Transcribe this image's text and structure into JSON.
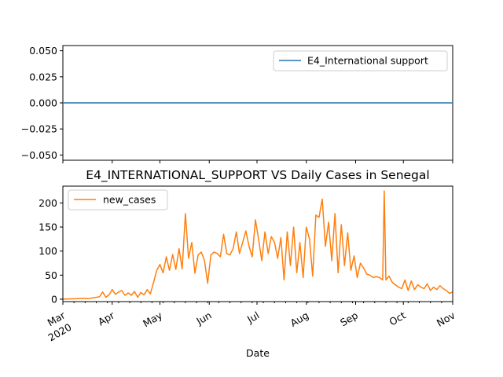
{
  "chart_data": [
    {
      "type": "line",
      "title": "",
      "xlabel": "",
      "ylabel": "",
      "x_start": "2020-03-01",
      "x_end": "2020-11-01",
      "ylim": [
        -0.055,
        0.055
      ],
      "yticks": [
        "0.050",
        "0.025",
        "0.000",
        "−0.025",
        "−0.050"
      ],
      "legend_position": "top-right",
      "series": [
        {
          "name": "E4_International support",
          "color": "#1f77b4",
          "x": [
            "2020-03-01",
            "2020-11-01"
          ],
          "values": [
            0,
            0
          ]
        }
      ]
    },
    {
      "type": "line",
      "title": "E4_INTERNATIONAL_SUPPORT VS Daily Cases in Senegal",
      "xlabel": "Date",
      "ylabel": "",
      "x_start": "2020-03-01",
      "x_end": "2020-11-01",
      "ylim": [
        -5,
        235
      ],
      "yticks": [
        "0",
        "50",
        "100",
        "150",
        "200"
      ],
      "xticks": [
        {
          "date": "2020-03-01",
          "label": "Mar",
          "sub": "2020"
        },
        {
          "date": "2020-04-01",
          "label": "Apr",
          "sub": ""
        },
        {
          "date": "2020-05-01",
          "label": "May",
          "sub": ""
        },
        {
          "date": "2020-06-01",
          "label": "Jun",
          "sub": ""
        },
        {
          "date": "2020-07-01",
          "label": "Jul",
          "sub": ""
        },
        {
          "date": "2020-08-01",
          "label": "Aug",
          "sub": ""
        },
        {
          "date": "2020-09-01",
          "label": "Sep",
          "sub": ""
        },
        {
          "date": "2020-10-01",
          "label": "Oct",
          "sub": ""
        },
        {
          "date": "2020-11-01",
          "label": "Nov",
          "sub": ""
        }
      ],
      "legend_position": "top-left",
      "series": [
        {
          "name": "new_cases",
          "color": "#ff7f0e",
          "x": [
            "2020-03-01",
            "2020-03-10",
            "2020-03-14",
            "2020-03-17",
            "2020-03-20",
            "2020-03-24",
            "2020-03-26",
            "2020-03-28",
            "2020-03-30",
            "2020-04-01",
            "2020-04-03",
            "2020-04-05",
            "2020-04-07",
            "2020-04-09",
            "2020-04-11",
            "2020-04-13",
            "2020-04-15",
            "2020-04-17",
            "2020-04-19",
            "2020-04-21",
            "2020-04-23",
            "2020-04-25",
            "2020-04-27",
            "2020-04-29",
            "2020-05-01",
            "2020-05-03",
            "2020-05-05",
            "2020-05-07",
            "2020-05-09",
            "2020-05-11",
            "2020-05-13",
            "2020-05-15",
            "2020-05-17",
            "2020-05-19",
            "2020-05-21",
            "2020-05-23",
            "2020-05-25",
            "2020-05-27",
            "2020-05-29",
            "2020-05-31",
            "2020-06-02",
            "2020-06-04",
            "2020-06-06",
            "2020-06-08",
            "2020-06-10",
            "2020-06-12",
            "2020-06-14",
            "2020-06-16",
            "2020-06-18",
            "2020-06-20",
            "2020-06-22",
            "2020-06-24",
            "2020-06-26",
            "2020-06-28",
            "2020-06-30",
            "2020-07-02",
            "2020-07-04",
            "2020-07-06",
            "2020-07-08",
            "2020-07-10",
            "2020-07-12",
            "2020-07-14",
            "2020-07-16",
            "2020-07-18",
            "2020-07-20",
            "2020-07-22",
            "2020-07-24",
            "2020-07-26",
            "2020-07-28",
            "2020-07-30",
            "2020-08-01",
            "2020-08-03",
            "2020-08-05",
            "2020-08-07",
            "2020-08-09",
            "2020-08-11",
            "2020-08-13",
            "2020-08-15",
            "2020-08-17",
            "2020-08-19",
            "2020-08-21",
            "2020-08-23",
            "2020-08-25",
            "2020-08-27",
            "2020-08-29",
            "2020-08-31",
            "2020-09-02",
            "2020-09-04",
            "2020-09-06",
            "2020-09-08",
            "2020-09-10",
            "2020-09-12",
            "2020-09-14",
            "2020-09-16",
            "2020-09-18",
            "2020-09-19",
            "2020-09-20",
            "2020-09-22",
            "2020-09-24",
            "2020-09-26",
            "2020-09-28",
            "2020-09-30",
            "2020-10-02",
            "2020-10-04",
            "2020-10-06",
            "2020-10-08",
            "2020-10-10",
            "2020-10-12",
            "2020-10-14",
            "2020-10-16",
            "2020-10-18",
            "2020-10-20",
            "2020-10-22",
            "2020-10-24",
            "2020-10-26",
            "2020-10-28",
            "2020-10-30",
            "2020-11-01"
          ],
          "values": [
            0,
            1,
            2,
            1,
            3,
            5,
            15,
            4,
            9,
            20,
            10,
            15,
            18,
            8,
            13,
            8,
            16,
            4,
            14,
            9,
            20,
            11,
            35,
            60,
            72,
            55,
            88,
            60,
            93,
            62,
            105,
            63,
            178,
            85,
            118,
            54,
            92,
            98,
            80,
            33,
            92,
            98,
            95,
            88,
            135,
            95,
            92,
            105,
            140,
            95,
            118,
            142,
            110,
            88,
            165,
            125,
            80,
            140,
            95,
            130,
            118,
            85,
            128,
            40,
            140,
            70,
            150,
            55,
            118,
            45,
            150,
            125,
            48,
            175,
            170,
            208,
            110,
            160,
            80,
            178,
            55,
            155,
            70,
            138,
            60,
            90,
            45,
            75,
            65,
            52,
            50,
            45,
            47,
            45,
            40,
            225,
            40,
            48,
            35,
            30,
            25,
            22,
            40,
            18,
            38,
            20,
            30,
            25,
            22,
            32,
            18,
            25,
            20,
            28,
            22,
            18,
            12,
            15
          ]
        }
      ]
    }
  ]
}
